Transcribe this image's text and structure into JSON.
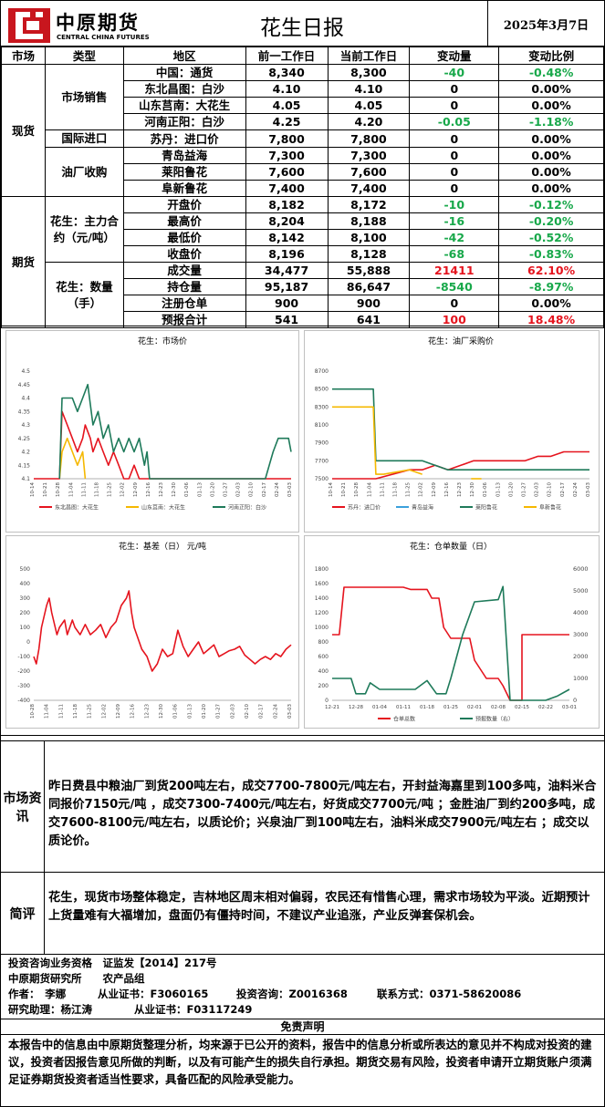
{
  "header": {
    "logo_cn": "中原期货",
    "logo_en": "CENTRAL CHINA FUTURES",
    "title": "花生日报",
    "date": "2025年3月7日"
  },
  "table": {
    "headers": [
      "市场",
      "类型",
      "地区",
      "前一工作日",
      "当前工作日",
      "变动量",
      "变动比例"
    ],
    "sections": [
      {
        "market": "现货",
        "groups": [
          {
            "type": "市场销售",
            "rows": [
              {
                "region": "中国：通货",
                "prev": "8,340",
                "cur": "8,300",
                "chg": "-40",
                "pct": "-0.48%",
                "color": "green"
              },
              {
                "region": "东北昌图：白沙",
                "prev": "4.10",
                "cur": "4.10",
                "chg": "0",
                "pct": "0.00%",
                "color": ""
              },
              {
                "region": "山东莒南：大花生",
                "prev": "4.05",
                "cur": "4.05",
                "chg": "0",
                "pct": "0.00%",
                "color": ""
              },
              {
                "region": "河南正阳：白沙",
                "prev": "4.25",
                "cur": "4.20",
                "chg": "-0.05",
                "pct": "-1.18%",
                "color": "green"
              }
            ]
          },
          {
            "type": "国际进口",
            "rows": [
              {
                "region": "苏丹：进口价",
                "prev": "7,800",
                "cur": "7,800",
                "chg": "0",
                "pct": "0.00%",
                "color": ""
              }
            ]
          },
          {
            "type": "油厂收购",
            "rows": [
              {
                "region": "青岛益海",
                "prev": "7,300",
                "cur": "7,300",
                "chg": "0",
                "pct": "0.00%",
                "color": ""
              },
              {
                "region": "莱阳鲁花",
                "prev": "7,600",
                "cur": "7,600",
                "chg": "0",
                "pct": "0.00%",
                "color": ""
              },
              {
                "region": "阜新鲁花",
                "prev": "7,400",
                "cur": "7,400",
                "chg": "0",
                "pct": "0.00%",
                "color": ""
              }
            ]
          }
        ]
      },
      {
        "market": "期货",
        "groups": [
          {
            "type": "花生：主力合约（元/吨）",
            "rows": [
              {
                "region": "开盘价",
                "prev": "8,182",
                "cur": "8,172",
                "chg": "-10",
                "pct": "-0.12%",
                "color": "green"
              },
              {
                "region": "最高价",
                "prev": "8,204",
                "cur": "8,188",
                "chg": "-16",
                "pct": "-0.20%",
                "color": "green"
              },
              {
                "region": "最低价",
                "prev": "8,142",
                "cur": "8,100",
                "chg": "-42",
                "pct": "-0.52%",
                "color": "green"
              },
              {
                "region": "收盘价",
                "prev": "8,196",
                "cur": "8,128",
                "chg": "-68",
                "pct": "-0.83%",
                "color": "green"
              }
            ]
          },
          {
            "type": "花生：数量（手）",
            "rows": [
              {
                "region": "成交量",
                "prev": "34,477",
                "cur": "55,888",
                "chg": "21411",
                "pct": "62.10%",
                "color": "red"
              },
              {
                "region": "持仓量",
                "prev": "95,187",
                "cur": "86,647",
                "chg": "-8540",
                "pct": "-8.97%",
                "color": "green"
              },
              {
                "region": "注册仓单",
                "prev": "900",
                "cur": "900",
                "chg": "0",
                "pct": "0.00%",
                "color": ""
              },
              {
                "region": "预报合计",
                "prev": "541",
                "cur": "641",
                "chg": "100",
                "pct": "18.48%",
                "color": "red"
              }
            ]
          }
        ]
      }
    ]
  },
  "charts": {
    "market": {
      "title": "花生：市场价",
      "yticks": [
        "4.5",
        "4.45",
        "4.4",
        "4.35",
        "4.3",
        "4.25",
        "4.2",
        "4.15",
        "4.1"
      ],
      "xticks": [
        "10-14",
        "10-21",
        "10-28",
        "11-04",
        "11-11",
        "11-18",
        "11-25",
        "12-02",
        "12-09",
        "12-16",
        "12-23",
        "12-30",
        "01-06",
        "01-13",
        "01-20",
        "01-27",
        "02-03",
        "02-10",
        "02-17",
        "02-24",
        "03-03"
      ],
      "legend": [
        "东北昌图：大花生",
        "山东莒南：大花生",
        "河南正阳：白沙"
      ],
      "colors": [
        "#e5141e",
        "#f5b800",
        "#1e7a5a"
      ]
    },
    "oil": {
      "title": "花生：油厂采购价",
      "yticks": [
        "8700",
        "8500",
        "8300",
        "8100",
        "7900",
        "7700",
        "7500"
      ],
      "xticks": [
        "10-14",
        "10-21",
        "10-28",
        "11-04",
        "11-11",
        "11-18",
        "11-25",
        "12-02",
        "12-09",
        "12-16",
        "12-23",
        "12-30",
        "01-06",
        "01-13",
        "01-20",
        "01-27",
        "02-03",
        "02-10",
        "02-17",
        "02-24",
        "03-03"
      ],
      "legend": [
        "苏丹：进口价",
        "青岛益海",
        "莱阳鲁花",
        "阜新鲁花"
      ],
      "colors": [
        "#e5141e",
        "#3ba0dc",
        "#1e7a5a",
        "#f5b800"
      ]
    },
    "basis": {
      "title": "花生：基差（日） 元/吨",
      "yticks": [
        "500",
        "400",
        "300",
        "200",
        "100",
        "0",
        "-100",
        "-200",
        "-300",
        "-400"
      ],
      "xticks": [
        "10-28",
        "11-04",
        "11-11",
        "11-18",
        "11-25",
        "12-02",
        "12-09",
        "12-16",
        "12-23",
        "12-30",
        "01-06",
        "01-13",
        "01-20",
        "01-27",
        "02-03",
        "02-10",
        "02-17",
        "02-24",
        "03-03"
      ],
      "color": "#e5141e"
    },
    "warrant": {
      "title": "花生：仓单数量（日）",
      "yticks_left": [
        "1800",
        "1600",
        "1400",
        "1200",
        "1000",
        "800",
        "600",
        "400",
        "200",
        "0"
      ],
      "yticks_right": [
        "6000",
        "5000",
        "4000",
        "3000",
        "2000",
        "1000",
        "0"
      ],
      "xticks": [
        "12-21",
        "12-28",
        "01-04",
        "01-11",
        "01-18",
        "01-25",
        "02-01",
        "02-08",
        "02-15",
        "02-22",
        "03-01"
      ],
      "legend": [
        "仓单总数",
        "预报数量（右）"
      ],
      "colors": [
        "#e5141e",
        "#1e7a5a"
      ]
    }
  },
  "news": {
    "label": "市场资讯",
    "text": "昨日费县中粮油厂到货200吨左右，成交7700-7800元/吨左右，开封益海嘉里到100多吨，油料米合同报价7150元/吨 ，成交7300-7400元/吨左右，好货成交7700元/吨 ；金胜油厂到约200多吨，成交7600-8100元/吨左右，以质论价；兴泉油厂到100吨左右，油料米成交7900元/吨左右 ；成交以质论价。"
  },
  "comment": {
    "label": "简评",
    "text": "花生，现货市场整体稳定，吉林地区周末相对偏弱，农民还有惜售心理，需求市场较为平淡。近期预计上货量难有大福增加，盘面仍有僵持时间，不建议产业追涨，产业反弹套保机会。"
  },
  "info": {
    "cert": "投资咨询业务资格　证监发【2014】217号",
    "org": "中原期货研究所　　农产品组",
    "author": "作者：　李娜",
    "author_cert": "从业证书：F3060165",
    "consult": "投资咨询：Z0016368",
    "contact": "联系方式：0371-58620086",
    "assistant": "研究助理：杨江涛",
    "assistant_cert": "从业证书：F03117249"
  },
  "disclaimer": {
    "title": "免责声明",
    "text": "本报告中的信息由中原期货整理分析，均来源于已公开的资料，报告中的信息分析或所表达的意见并不构成对投资的建议，投资者因报告意见所做的判断，以及有可能产生的损失自行承担。期货交易有风险，投资者申请开立期货账户须满足证券期货投资者适当性要求，具备匹配的风险承受能力。"
  }
}
